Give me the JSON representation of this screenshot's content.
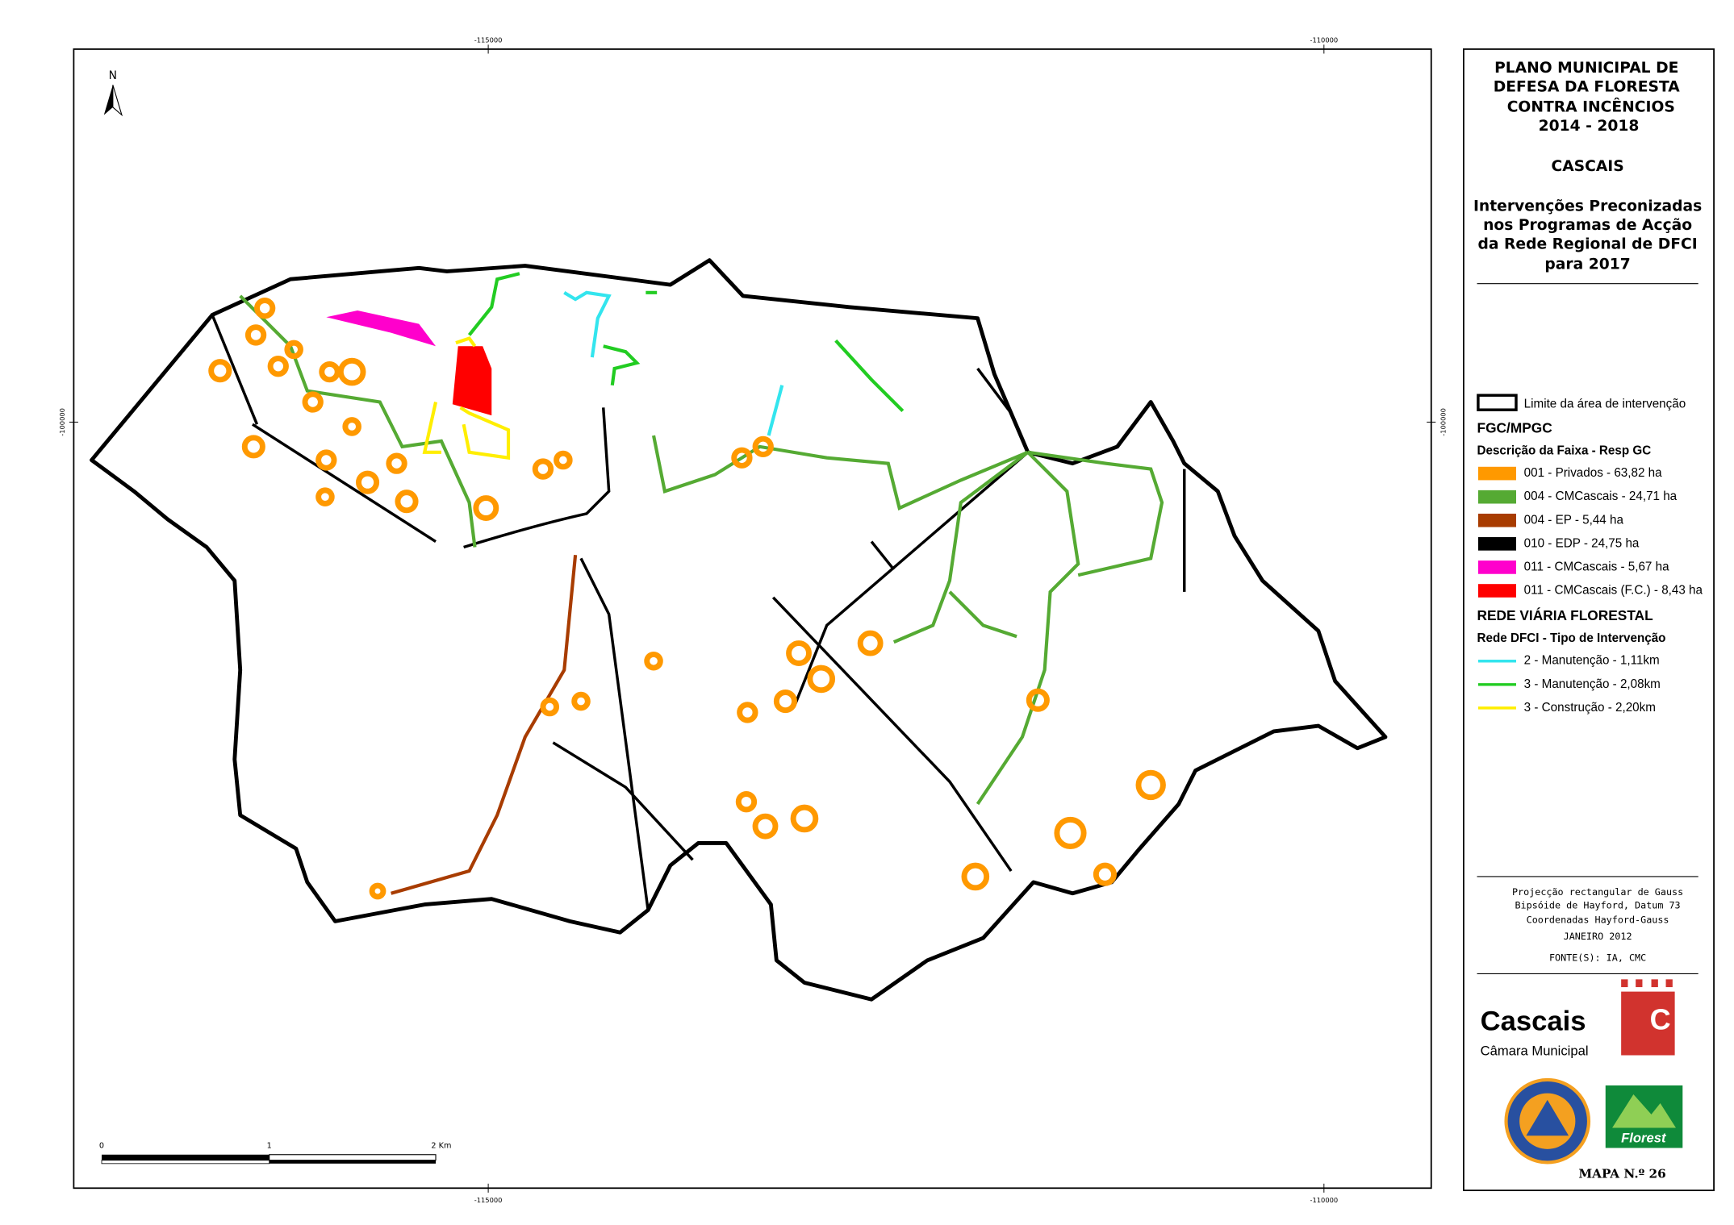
{
  "map": {
    "coordinates": {
      "top": [
        "-115000",
        "-110000"
      ],
      "bottom": [
        "-115000",
        "-110000"
      ],
      "left": "-100000",
      "right": "-100000"
    },
    "north": "N",
    "scale_bar": [
      "0",
      "1",
      "2 Km"
    ]
  },
  "panel": {
    "title": [
      "PLANO MUNICIPAL DE",
      "DEFESA DA FLORESTA",
      "CONTRA INCÊNCIOS",
      "2014 - 2018"
    ],
    "municipality": "CASCAIS",
    "subtitle": [
      "Intervenções Preconizadas",
      "nos Programas de Acção",
      "da Rede Regional de DFCI",
      "para 2017"
    ],
    "legend": {
      "boundary": "Limite da área de intervenção",
      "fgc_heading": "FGC/MPGC",
      "fgc_subheading": "Descrição da Faixa - Resp GC",
      "fgc_items": [
        {
          "label": "001 - Privados - 63,82 ha",
          "color": "#ff9900"
        },
        {
          "label": "004 - CMCascais - 24,71 ha",
          "color": "#55aa33"
        },
        {
          "label": "004 - EP - 5,44 ha",
          "color": "#a83c00"
        },
        {
          "label": "010 - EDP - 24,75 ha",
          "color": "#000000"
        },
        {
          "label": "011 - CMCascais - 5,67 ha",
          "color": "#ff00cc"
        },
        {
          "label": "011 - CMCascais (F.C.) - 8,43 ha",
          "color": "#ff0000"
        }
      ],
      "road_heading": "REDE VIÁRIA FLORESTAL",
      "road_subheading": "Rede DFCI -  Tipo de Intervenção",
      "road_items": [
        {
          "label": "2 - Manutenção - 1,11km",
          "color": "#33e5ee"
        },
        {
          "label": "3 - Manutenção - 2,08km",
          "color": "#22cc22"
        },
        {
          "label": "3 - Construção - 2,20km",
          "color": "#ffee00"
        }
      ]
    },
    "notes": [
      "Projecção rectangular de Gauss",
      "Bipsóide de Hayford, Datum 73",
      "Coordenadas Hayford-Gauss",
      "JANEIRO 2012"
    ],
    "source": "FONTE(S): IA, CMC",
    "logos": {
      "cascais": "Cascais",
      "camara": "Câmara Municipal",
      "c": "C",
      "florest": "Florest"
    },
    "map_number": "MAPA N.º 26"
  }
}
